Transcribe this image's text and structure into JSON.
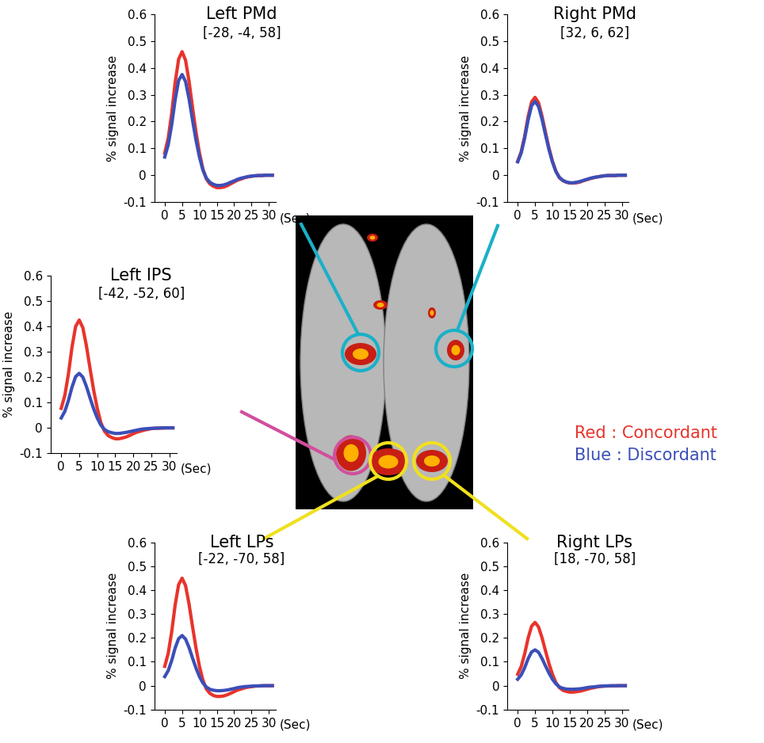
{
  "chart_data": [
    {
      "type": "line",
      "title": "Left PMd",
      "subtitle": "[-28, -4, 58]",
      "y_label": "% signal increase",
      "x_label": "(Sec)",
      "x": [
        0,
        1,
        2,
        3,
        4,
        5,
        6,
        7,
        8,
        9,
        10,
        11,
        12,
        13,
        14,
        15,
        16,
        17,
        18,
        19,
        20,
        21,
        22,
        23,
        24,
        25,
        26,
        27,
        28,
        29,
        30,
        31
      ],
      "series": [
        {
          "color": "#e8342c",
          "values": [
            0.083,
            0.138,
            0.23,
            0.345,
            0.432,
            0.46,
            0.428,
            0.35,
            0.253,
            0.161,
            0.083,
            0.023,
            -0.014,
            -0.032,
            -0.041,
            -0.046,
            -0.046,
            -0.044,
            -0.039,
            -0.032,
            -0.025,
            -0.018,
            -0.014,
            -0.009,
            -0.006,
            -0.004,
            -0.002,
            -0.001,
            -0.001,
            0,
            0,
            0
          ]
        },
        {
          "color": "#3b4fb8",
          "values": [
            0.068,
            0.113,
            0.188,
            0.281,
            0.353,
            0.375,
            0.349,
            0.285,
            0.206,
            0.131,
            0.068,
            0.019,
            -0.011,
            -0.026,
            -0.034,
            -0.038,
            -0.038,
            -0.036,
            -0.032,
            -0.026,
            -0.021,
            -0.015,
            -0.011,
            -0.008,
            -0.005,
            -0.003,
            -0.002,
            -0.001,
            -0.001,
            0,
            0,
            0
          ]
        }
      ],
      "xlim": [
        -3,
        32
      ],
      "ylim": [
        -0.1,
        0.6
      ],
      "xticks": [
        0,
        5,
        10,
        15,
        20,
        25,
        30
      ],
      "yticks": [
        -0.1,
        0,
        0.1,
        0.2,
        0.3,
        0.4,
        0.5,
        0.6
      ]
    },
    {
      "type": "line",
      "title": "Right PMd",
      "subtitle": "[32, 6, 62]",
      "y_label": "% signal increase",
      "x_label": "(Sec)",
      "x": [
        0,
        1,
        2,
        3,
        4,
        5,
        6,
        7,
        8,
        9,
        10,
        11,
        12,
        13,
        14,
        15,
        16,
        17,
        18,
        19,
        20,
        21,
        22,
        23,
        24,
        25,
        26,
        27,
        28,
        29,
        30,
        31
      ],
      "series": [
        {
          "color": "#e8342c",
          "values": [
            0.052,
            0.087,
            0.145,
            0.218,
            0.273,
            0.29,
            0.27,
            0.22,
            0.16,
            0.102,
            0.052,
            0.015,
            -0.009,
            -0.02,
            -0.026,
            -0.029,
            -0.029,
            -0.028,
            -0.025,
            -0.02,
            -0.016,
            -0.012,
            -0.009,
            -0.006,
            -0.004,
            -0.002,
            -0.001,
            -0.001,
            -0.001,
            0,
            0,
            0
          ]
        },
        {
          "color": "#3b4fb8",
          "values": [
            0.05,
            0.083,
            0.138,
            0.206,
            0.259,
            0.275,
            0.256,
            0.209,
            0.151,
            0.096,
            0.05,
            0.014,
            -0.008,
            -0.019,
            -0.025,
            -0.028,
            -0.028,
            -0.026,
            -0.023,
            -0.019,
            -0.015,
            -0.011,
            -0.008,
            -0.006,
            -0.004,
            -0.002,
            -0.001,
            -0.001,
            -0.001,
            0,
            0,
            0
          ]
        }
      ],
      "xlim": [
        -3,
        32
      ],
      "ylim": [
        -0.1,
        0.6
      ],
      "xticks": [
        0,
        5,
        10,
        15,
        20,
        25,
        30
      ],
      "yticks": [
        -0.1,
        0,
        0.1,
        0.2,
        0.3,
        0.4,
        0.5,
        0.6
      ]
    },
    {
      "type": "line",
      "title": "Left IPS",
      "subtitle": "[-42, -52, 60]",
      "y_label": "% signal increase",
      "x_label": "(Sec)",
      "x": [
        0,
        1,
        2,
        3,
        4,
        5,
        6,
        7,
        8,
        9,
        10,
        11,
        12,
        13,
        14,
        15,
        16,
        17,
        18,
        19,
        20,
        21,
        22,
        23,
        24,
        25,
        26,
        27,
        28,
        29,
        30,
        31
      ],
      "series": [
        {
          "color": "#e8342c",
          "values": [
            0.077,
            0.128,
            0.213,
            0.319,
            0.4,
            0.425,
            0.395,
            0.323,
            0.234,
            0.149,
            0.077,
            0.021,
            -0.013,
            -0.03,
            -0.038,
            -0.043,
            -0.043,
            -0.04,
            -0.036,
            -0.03,
            -0.023,
            -0.017,
            -0.013,
            -0.009,
            -0.006,
            -0.003,
            -0.002,
            -0.001,
            -0.001,
            0,
            0,
            0
          ]
        },
        {
          "color": "#3b4fb8",
          "values": [
            0.039,
            0.065,
            0.108,
            0.161,
            0.202,
            0.215,
            0.2,
            0.163,
            0.118,
            0.075,
            0.039,
            0.011,
            -0.006,
            -0.015,
            -0.019,
            -0.022,
            -0.022,
            -0.02,
            -0.018,
            -0.015,
            -0.012,
            -0.009,
            -0.006,
            -0.004,
            -0.003,
            -0.002,
            -0.001,
            -0.001,
            0,
            0,
            0,
            0
          ]
        }
      ],
      "xlim": [
        -3,
        32
      ],
      "ylim": [
        -0.1,
        0.6
      ],
      "xticks": [
        0,
        5,
        10,
        15,
        20,
        25,
        30
      ],
      "yticks": [
        -0.1,
        0,
        0.1,
        0.2,
        0.3,
        0.4,
        0.5,
        0.6
      ]
    },
    {
      "type": "line",
      "title": "Left LPs",
      "subtitle": "[-22, -70, 58]",
      "y_label": "% signal increase",
      "x_label": "(Sec)",
      "x": [
        0,
        1,
        2,
        3,
        4,
        5,
        6,
        7,
        8,
        9,
        10,
        11,
        12,
        13,
        14,
        15,
        16,
        17,
        18,
        19,
        20,
        21,
        22,
        23,
        24,
        25,
        26,
        27,
        28,
        29,
        30,
        31
      ],
      "series": [
        {
          "color": "#e8342c",
          "values": [
            0.081,
            0.135,
            0.225,
            0.338,
            0.423,
            0.45,
            0.419,
            0.342,
            0.248,
            0.158,
            0.081,
            0.023,
            -0.014,
            -0.032,
            -0.041,
            -0.045,
            -0.045,
            -0.043,
            -0.038,
            -0.032,
            -0.025,
            -0.018,
            -0.014,
            -0.009,
            -0.006,
            -0.004,
            -0.002,
            -0.001,
            -0.001,
            0,
            0,
            0
          ]
        },
        {
          "color": "#3b4fb8",
          "values": [
            0.038,
            0.063,
            0.105,
            0.158,
            0.197,
            0.21,
            0.195,
            0.16,
            0.116,
            0.074,
            0.038,
            0.011,
            -0.006,
            -0.015,
            -0.019,
            -0.021,
            -0.021,
            -0.02,
            -0.018,
            -0.015,
            -0.012,
            -0.008,
            -0.006,
            -0.004,
            -0.003,
            -0.002,
            -0.001,
            -0.001,
            0,
            0,
            0,
            0
          ]
        }
      ],
      "xlim": [
        -3,
        32
      ],
      "ylim": [
        -0.1,
        0.6
      ],
      "xticks": [
        0,
        5,
        10,
        15,
        20,
        25,
        30
      ],
      "yticks": [
        -0.1,
        0,
        0.1,
        0.2,
        0.3,
        0.4,
        0.5,
        0.6
      ]
    },
    {
      "type": "line",
      "title": "Right LPs",
      "subtitle": "[18, -70, 58]",
      "y_label": "% signal increase",
      "x_label": "(Sec)",
      "x": [
        0,
        1,
        2,
        3,
        4,
        5,
        6,
        7,
        8,
        9,
        10,
        11,
        12,
        13,
        14,
        15,
        16,
        17,
        18,
        19,
        20,
        21,
        22,
        23,
        24,
        25,
        26,
        27,
        28,
        29,
        30,
        31
      ],
      "series": [
        {
          "color": "#e8342c",
          "values": [
            0.048,
            0.08,
            0.133,
            0.199,
            0.249,
            0.265,
            0.246,
            0.201,
            0.146,
            0.093,
            0.048,
            0.013,
            -0.008,
            -0.019,
            -0.024,
            -0.027,
            -0.027,
            -0.025,
            -0.023,
            -0.019,
            -0.015,
            -0.011,
            -0.008,
            -0.005,
            -0.003,
            -0.002,
            -0.001,
            -0.001,
            -0.001,
            0,
            0,
            0
          ]
        },
        {
          "color": "#3b4fb8",
          "values": [
            0.027,
            0.045,
            0.075,
            0.113,
            0.141,
            0.15,
            0.14,
            0.114,
            0.083,
            0.053,
            0.027,
            0.008,
            -0.005,
            -0.011,
            -0.014,
            -0.015,
            -0.015,
            -0.014,
            -0.013,
            -0.011,
            -0.008,
            -0.006,
            -0.005,
            -0.003,
            -0.002,
            -0.001,
            -0.001,
            0,
            0,
            0,
            0,
            0
          ]
        }
      ],
      "xlim": [
        -3,
        32
      ],
      "ylim": [
        -0.1,
        0.6
      ],
      "xticks": [
        0,
        5,
        10,
        15,
        20,
        25,
        30
      ],
      "yticks": [
        -0.1,
        0,
        0.1,
        0.2,
        0.3,
        0.4,
        0.5,
        0.6
      ]
    }
  ],
  "annotations": [
    {
      "text": "Red : Concordant",
      "color": "#e8342c"
    },
    {
      "text": "Blue : Discordant",
      "color": "#3b4fb8"
    }
  ]
}
